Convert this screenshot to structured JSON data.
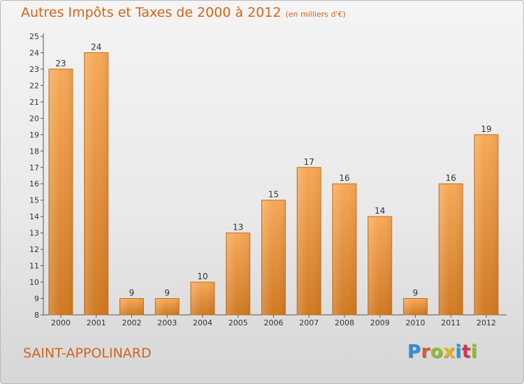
{
  "title": "Autres Impôts et Taxes de 2000 à 2012",
  "unit": "(en milliers d'€)",
  "town": "SAINT-APPOLINARD",
  "logo": {
    "text": "Proxiti",
    "colors": [
      "#2f8fd8",
      "#e0592a",
      "#8dbf2f",
      "#e8b21a",
      "#1f9fd4",
      "#d9354a",
      "#8dbf2f"
    ]
  },
  "colors": {
    "bar_top": "#f7a958",
    "bar_bottom": "#d07a23",
    "bar_edge": "#c46f1d",
    "text": "#d0641d",
    "axis_text": "#333333"
  },
  "chart_data": {
    "type": "bar",
    "categories": [
      "2000",
      "2001",
      "2002",
      "2003",
      "2004",
      "2005",
      "2006",
      "2007",
      "2008",
      "2009",
      "2010",
      "2011",
      "2012"
    ],
    "values": [
      23,
      24,
      9,
      9,
      10,
      13,
      15,
      17,
      16,
      14,
      9,
      16,
      19
    ],
    "data_labels": [
      "23",
      "24",
      "9",
      "9",
      "10",
      "13",
      "15",
      "17",
      "16",
      "14",
      "9",
      "16",
      "19"
    ],
    "ylim": [
      8,
      25
    ],
    "yticks": [
      "8",
      "9",
      "10",
      "11",
      "12",
      "13",
      "14",
      "15",
      "16",
      "17",
      "18",
      "19",
      "20",
      "21",
      "22",
      "23",
      "24",
      "25"
    ],
    "xlabel": "",
    "ylabel": "",
    "grid": false,
    "legend": "none"
  }
}
